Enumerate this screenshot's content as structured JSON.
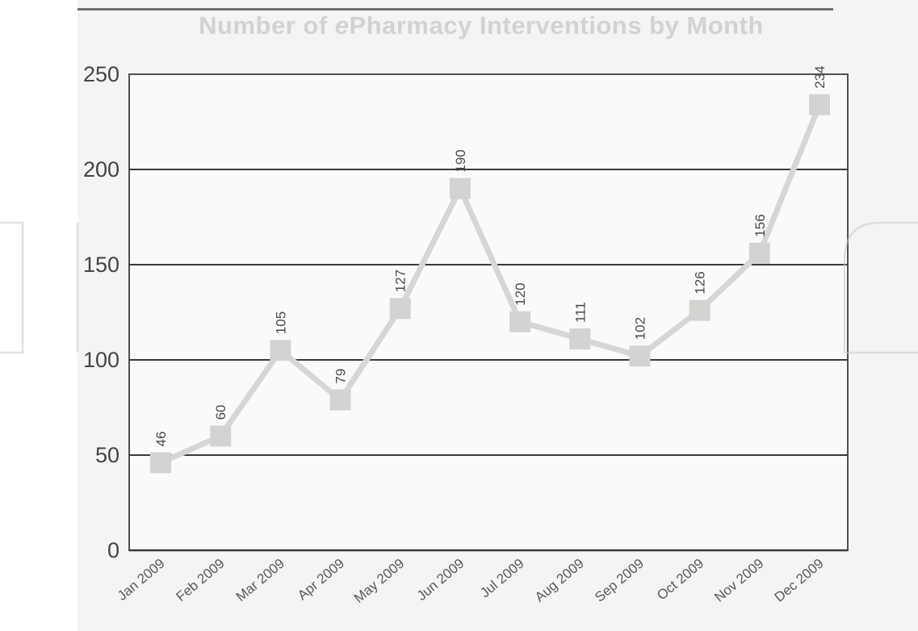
{
  "colors": {
    "line": "#d6d6d4",
    "marker": "#d3d3d1",
    "grid": "#3a3a3a",
    "axis": "#505050",
    "title": "#d2d2d2",
    "watermark": "#c9c9c9"
  },
  "chart_data": {
    "type": "line",
    "title_parts": [
      "Number of ",
      "e",
      "Pharmacy Interventions by Month"
    ],
    "categories": [
      "Jan 2009",
      "Feb 2009",
      "Mar 2009",
      "Apr 2009",
      "May 2009",
      "Jun 2009",
      "Jul 2009",
      "Aug 2009",
      "Sep 2009",
      "Oct 2009",
      "Nov 2009",
      "Dec 2009"
    ],
    "series": [
      {
        "values": [
          46,
          60,
          105,
          79,
          127,
          190,
          120,
          111,
          102,
          126,
          156,
          234
        ]
      }
    ],
    "data_labels": [
      "46",
      "60",
      "105",
      "79",
      "127",
      "190",
      "120",
      "111",
      "102",
      "126",
      "156",
      "234"
    ],
    "yticks": [
      0,
      50,
      100,
      150,
      200,
      250
    ],
    "ylim": [
      0,
      250
    ],
    "grid": true,
    "legend": "none"
  }
}
